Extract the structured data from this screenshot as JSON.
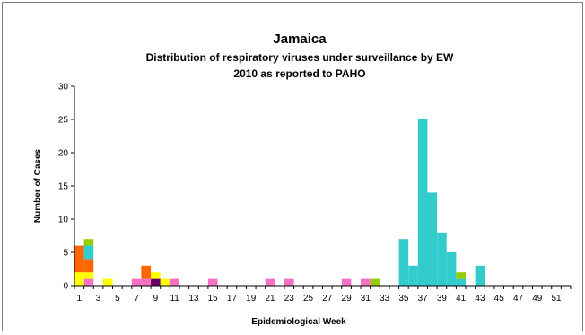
{
  "chart_data": {
    "type": "bar",
    "stacked": true,
    "title": "Jamaica",
    "subtitle_lines": [
      "Distribution of respiratory viruses under surveillance by EW",
      "2010 as reported to PAHO"
    ],
    "xlabel": "Epidemiological Week",
    "ylabel": "Number of Cases",
    "ylim": [
      0,
      30
    ],
    "y_ticks": [
      0,
      5,
      10,
      15,
      20,
      25,
      30
    ],
    "x_range": [
      1,
      52
    ],
    "x_ticks": [
      1,
      3,
      5,
      7,
      9,
      11,
      13,
      15,
      17,
      19,
      21,
      23,
      25,
      27,
      29,
      31,
      33,
      35,
      37,
      39,
      41,
      43,
      45,
      47,
      49,
      51
    ],
    "grid": false,
    "legend": "none",
    "series": [
      {
        "color": "#f472c4",
        "points": [
          [
            2,
            1
          ],
          [
            7,
            1
          ],
          [
            8,
            1
          ],
          [
            11,
            1
          ],
          [
            15,
            1
          ],
          [
            21,
            1
          ],
          [
            23,
            1
          ],
          [
            29,
            1
          ],
          [
            31,
            1
          ]
        ]
      },
      {
        "color": "#660066",
        "points": [
          [
            9,
            1
          ]
        ]
      },
      {
        "color": "#ffff00",
        "points": [
          [
            1,
            2
          ],
          [
            2,
            1
          ],
          [
            4,
            1
          ],
          [
            9,
            1
          ],
          [
            10,
            1
          ]
        ]
      },
      {
        "color": "#ff6600",
        "points": [
          [
            1,
            4
          ],
          [
            2,
            2
          ],
          [
            8,
            2
          ]
        ]
      },
      {
        "color": "#33cccc",
        "points": [
          [
            2,
            2
          ],
          [
            35,
            7
          ],
          [
            36,
            3
          ],
          [
            37,
            25
          ],
          [
            38,
            14
          ],
          [
            39,
            8
          ],
          [
            40,
            5
          ],
          [
            41,
            1
          ],
          [
            43,
            3
          ]
        ]
      },
      {
        "color": "#99cc00",
        "points": [
          [
            2,
            1
          ],
          [
            32,
            1
          ],
          [
            41,
            1
          ]
        ]
      }
    ]
  }
}
